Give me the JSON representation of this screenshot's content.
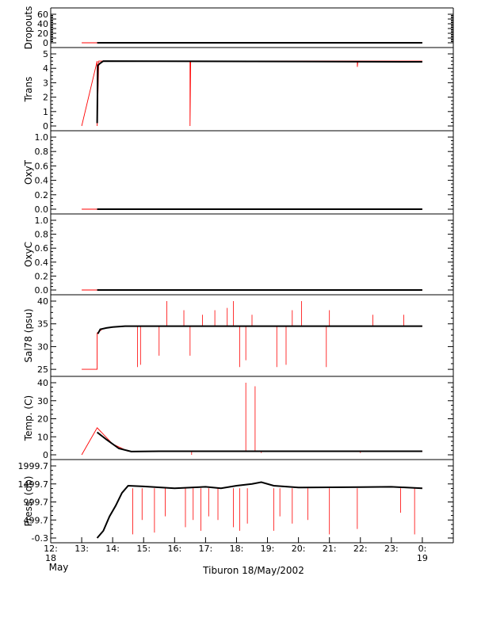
{
  "figure": {
    "xlabel": "Tiburon 18/May/2002"
  },
  "colors": {
    "data": "#000000",
    "raw": "#ff0000",
    "axis": "#000000"
  },
  "chart_data": {
    "type": "line",
    "xlabel": "Tiburon 18/May/2002",
    "xlim": [
      12,
      25
    ],
    "x_ticks": [
      {
        "v": 12,
        "label": "12:",
        "sub": "18"
      },
      {
        "v": 13,
        "label": "13:"
      },
      {
        "v": 14,
        "label": "14:"
      },
      {
        "v": 15,
        "label": "15:"
      },
      {
        "v": 16,
        "label": "16:"
      },
      {
        "v": 17,
        "label": "17:"
      },
      {
        "v": 18,
        "label": "18:"
      },
      {
        "v": 19,
        "label": "19:"
      },
      {
        "v": 20,
        "label": "20:"
      },
      {
        "v": 21,
        "label": "21:"
      },
      {
        "v": 22,
        "label": "22:"
      },
      {
        "v": 23,
        "label": "23:"
      },
      {
        "v": 24,
        "label": "0:",
        "sub": "19"
      }
    ],
    "x_month_label": "May",
    "panels": [
      {
        "id": "dropouts",
        "ylabel": "Dropouts",
        "ylim": [
          0,
          60
        ],
        "yticks": [
          0,
          10,
          20,
          30,
          40,
          50,
          60
        ],
        "ytick_labels": [
          "0",
          "",
          "20",
          "",
          "40",
          "",
          "60"
        ],
        "series": [
          {
            "kind": "raw",
            "points": [
              [
                13.0,
                0
              ],
              [
                13.5,
                0
              ],
              [
                24.0,
                0
              ]
            ]
          },
          {
            "kind": "data",
            "points": [
              [
                13.5,
                0
              ],
              [
                24.0,
                0
              ]
            ]
          }
        ]
      },
      {
        "id": "trans",
        "ylabel": "Trans",
        "ylim": [
          0,
          5
        ],
        "yticks": [
          0,
          1,
          2,
          3,
          4,
          5
        ],
        "ytick_labels": [
          "0",
          "1",
          "2",
          "3",
          "4",
          "5"
        ],
        "series": [
          {
            "kind": "raw",
            "points": [
              [
                13.0,
                0
              ],
              [
                13.5,
                4.5
              ],
              [
                13.5,
                0
              ],
              [
                13.55,
                4.5
              ],
              [
                16.5,
                4.5
              ],
              [
                16.5,
                0
              ],
              [
                16.52,
                4.5
              ],
              [
                21.9,
                4.5
              ],
              [
                21.9,
                4.1
              ],
              [
                21.92,
                4.5
              ],
              [
                24.0,
                4.5
              ]
            ]
          },
          {
            "kind": "data",
            "points": [
              [
                13.5,
                0.2
              ],
              [
                13.52,
                4.2
              ],
              [
                13.6,
                4.35
              ],
              [
                13.7,
                4.5
              ],
              [
                24.0,
                4.45
              ]
            ]
          }
        ]
      },
      {
        "id": "oxyt",
        "ylabel": "OxyT",
        "ylim": [
          0,
          1
        ],
        "yticks": [
          0,
          0.2,
          0.4,
          0.6,
          0.8,
          1.0
        ],
        "ytick_labels": [
          "0.0",
          "0.2",
          "0.4",
          "0.6",
          "0.8",
          "1.0"
        ],
        "series": [
          {
            "kind": "raw",
            "points": [
              [
                13.0,
                0
              ],
              [
                24.0,
                0
              ]
            ]
          },
          {
            "kind": "data",
            "points": [
              [
                13.5,
                0
              ],
              [
                24.0,
                0
              ]
            ]
          }
        ]
      },
      {
        "id": "oxyc",
        "ylabel": "OxyC",
        "ylim": [
          0,
          1
        ],
        "yticks": [
          0,
          0.2,
          0.4,
          0.6,
          0.8,
          1.0
        ],
        "ytick_labels": [
          "0.0",
          "0.2",
          "0.4",
          "0.6",
          "0.8",
          "1.0"
        ],
        "series": [
          {
            "kind": "raw",
            "points": [
              [
                13.0,
                0
              ],
              [
                24.0,
                0
              ]
            ]
          },
          {
            "kind": "data",
            "points": [
              [
                13.5,
                0
              ],
              [
                24.0,
                0
              ]
            ]
          }
        ]
      },
      {
        "id": "sal78",
        "ylabel": "Sal78 (psu)",
        "ylim": [
          24.5,
          40
        ],
        "yticks": [
          25,
          30,
          35,
          40
        ],
        "ytick_labels": [
          "25",
          "30",
          "35",
          "40"
        ],
        "series": [
          {
            "kind": "raw",
            "points": [
              [
                13.0,
                25
              ],
              [
                13.5,
                25
              ],
              [
                13.5,
                33
              ],
              [
                13.7,
                34
              ],
              [
                14.0,
                34.3
              ],
              [
                14.3,
                34.5
              ],
              [
                24.0,
                34.5
              ]
            ]
          },
          {
            "kind": "data",
            "points": [
              [
                13.52,
                32.8
              ],
              [
                13.6,
                33.8
              ],
              [
                13.8,
                34.1
              ],
              [
                14.0,
                34.3
              ],
              [
                14.4,
                34.5
              ],
              [
                24.0,
                34.5
              ]
            ]
          }
        ],
        "spikes": [
          [
            14.8,
            25.5
          ],
          [
            14.9,
            26
          ],
          [
            15.5,
            28
          ],
          [
            15.75,
            40
          ],
          [
            16.3,
            38
          ],
          [
            16.5,
            28
          ],
          [
            16.9,
            37
          ],
          [
            17.3,
            38
          ],
          [
            17.7,
            38.5
          ],
          [
            17.9,
            40
          ],
          [
            18.1,
            25.5
          ],
          [
            18.3,
            27
          ],
          [
            18.5,
            37
          ],
          [
            19.3,
            25.5
          ],
          [
            19.6,
            26
          ],
          [
            19.8,
            38
          ],
          [
            20.1,
            40
          ],
          [
            20.9,
            25.5
          ],
          [
            21.0,
            38
          ],
          [
            22.4,
            37
          ],
          [
            23.4,
            37
          ]
        ]
      },
      {
        "id": "temp",
        "ylabel": "Temp. (C)",
        "ylim": [
          0,
          40
        ],
        "yticks": [
          0,
          10,
          20,
          30,
          40
        ],
        "ytick_labels": [
          "0",
          "10",
          "20",
          "30",
          "40"
        ],
        "series": [
          {
            "kind": "raw",
            "points": [
              [
                13.0,
                0
              ],
              [
                13.5,
                15
              ],
              [
                14.0,
                6
              ],
              [
                14.5,
                2
              ],
              [
                24.0,
                2
              ]
            ]
          },
          {
            "kind": "data",
            "points": [
              [
                13.5,
                12.5
              ],
              [
                13.8,
                8.5
              ],
              [
                14.2,
                3.5
              ],
              [
                14.6,
                1.8
              ],
              [
                15.5,
                2
              ],
              [
                24.0,
                2
              ]
            ]
          }
        ],
        "spikes": [
          [
            18.3,
            40
          ],
          [
            18.6,
            38
          ],
          [
            16.55,
            0
          ],
          [
            18.8,
            1
          ],
          [
            22.0,
            1
          ]
        ]
      },
      {
        "id": "press",
        "ylabel": "Press. (db)",
        "ylim": [
          -0.3,
          1999.7
        ],
        "yticks": [
          -0.3,
          499.7,
          999.7,
          1499.7,
          1999.7
        ],
        "ytick_labels": [
          "-0.3",
          "499.7",
          "999.7",
          "1499.7",
          "1999.7"
        ],
        "series": [
          {
            "kind": "raw",
            "points": [
              [
                13.5,
                -0.3
              ],
              [
                13.7,
                200
              ],
              [
                13.9,
                600
              ],
              [
                14.1,
                900
              ],
              [
                14.3,
                1250
              ],
              [
                14.5,
                1450
              ],
              [
                15.0,
                1430
              ],
              [
                16.0,
                1380
              ],
              [
                17.0,
                1420
              ],
              [
                17.5,
                1380
              ],
              [
                18.0,
                1450
              ],
              [
                18.5,
                1500
              ],
              [
                18.8,
                1550
              ],
              [
                19.2,
                1450
              ],
              [
                20.0,
                1400
              ],
              [
                22.0,
                1410
              ],
              [
                23.0,
                1420
              ],
              [
                24.0,
                1380
              ]
            ]
          },
          {
            "kind": "data",
            "points": [
              [
                13.5,
                -0.3
              ],
              [
                13.7,
                200
              ],
              [
                13.9,
                600
              ],
              [
                14.1,
                900
              ],
              [
                14.3,
                1250
              ],
              [
                14.5,
                1450
              ],
              [
                15.0,
                1430
              ],
              [
                16.0,
                1380
              ],
              [
                17.0,
                1420
              ],
              [
                17.5,
                1380
              ],
              [
                18.0,
                1450
              ],
              [
                18.5,
                1500
              ],
              [
                18.8,
                1550
              ],
              [
                19.2,
                1450
              ],
              [
                20.0,
                1400
              ],
              [
                22.0,
                1410
              ],
              [
                23.0,
                1420
              ],
              [
                24.0,
                1380
              ]
            ]
          }
        ],
        "spikes": [
          [
            14.65,
            100
          ],
          [
            14.95,
            500
          ],
          [
            15.35,
            150
          ],
          [
            15.7,
            600
          ],
          [
            16.35,
            300
          ],
          [
            16.6,
            500
          ],
          [
            16.85,
            200
          ],
          [
            17.1,
            600
          ],
          [
            17.4,
            500
          ],
          [
            17.9,
            300
          ],
          [
            18.1,
            200
          ],
          [
            18.35,
            400
          ],
          [
            19.2,
            200
          ],
          [
            19.4,
            600
          ],
          [
            19.8,
            400
          ],
          [
            20.3,
            500
          ],
          [
            21.0,
            100
          ],
          [
            21.9,
            250
          ],
          [
            23.3,
            700
          ],
          [
            23.75,
            100
          ]
        ]
      }
    ]
  }
}
